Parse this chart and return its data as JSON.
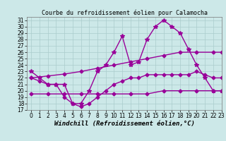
{
  "title": "Courbe du refroidissement éolien pour Calamocha",
  "xlabel": "Windchill (Refroidissement éolien,°C)",
  "bg_color": "#cce8e8",
  "grid_color": "#aacccc",
  "line_color": "#990099",
  "xmin": -0.5,
  "xmax": 23,
  "ymin": 17,
  "ymax": 31.5,
  "xticks": [
    0,
    1,
    2,
    3,
    4,
    5,
    6,
    7,
    8,
    9,
    10,
    11,
    12,
    13,
    14,
    15,
    16,
    17,
    18,
    19,
    20,
    21,
    22,
    23
  ],
  "yticks": [
    17,
    18,
    19,
    20,
    21,
    22,
    23,
    24,
    25,
    26,
    27,
    28,
    29,
    30,
    31
  ],
  "series": [
    {
      "x": [
        0,
        1,
        2,
        3,
        4,
        5,
        6,
        7,
        8,
        9,
        10,
        11,
        12,
        13,
        14,
        15,
        16,
        17,
        18,
        19,
        20,
        21,
        22,
        23
      ],
      "y": [
        23,
        22,
        21,
        21,
        21,
        18,
        18,
        20,
        23,
        24,
        26,
        28.5,
        24,
        24.5,
        28,
        30,
        31,
        30,
        29,
        26.5,
        24,
        22,
        20,
        20
      ],
      "marker": "*",
      "markersize": 4,
      "lw": 1.0
    },
    {
      "x": [
        0,
        2,
        4,
        6,
        8,
        10,
        12,
        14,
        16,
        18,
        20,
        22,
        23
      ],
      "y": [
        22,
        22.3,
        22.6,
        23.0,
        23.5,
        24.0,
        24.5,
        25.0,
        25.5,
        26.0,
        26.0,
        26.0,
        26.0
      ],
      "marker": "D",
      "markersize": 2.5,
      "lw": 1.0
    },
    {
      "x": [
        0,
        1,
        2,
        3,
        4,
        5,
        6,
        7,
        8,
        9,
        10,
        11,
        12,
        13,
        14,
        15,
        16,
        17,
        18,
        19,
        20,
        21,
        22,
        23
      ],
      "y": [
        22,
        21.5,
        21,
        21,
        19,
        18,
        17.5,
        18,
        19,
        20,
        21,
        21.5,
        22,
        22,
        22.5,
        22.5,
        22.5,
        22.5,
        22.5,
        22.5,
        23,
        22.5,
        22,
        22
      ],
      "marker": "D",
      "markersize": 2.5,
      "lw": 1.0
    },
    {
      "x": [
        0,
        2,
        4,
        6,
        8,
        10,
        12,
        14,
        16,
        18,
        20,
        22,
        23
      ],
      "y": [
        19.5,
        19.5,
        19.5,
        19.5,
        19.5,
        19.5,
        19.5,
        19.5,
        20.0,
        20.0,
        20.0,
        20.0,
        20.0
      ],
      "marker": "D",
      "markersize": 2.5,
      "lw": 1.0
    }
  ],
  "title_fontsize": 6,
  "tick_fontsize": 5.5,
  "xlabel_fontsize": 6.5
}
